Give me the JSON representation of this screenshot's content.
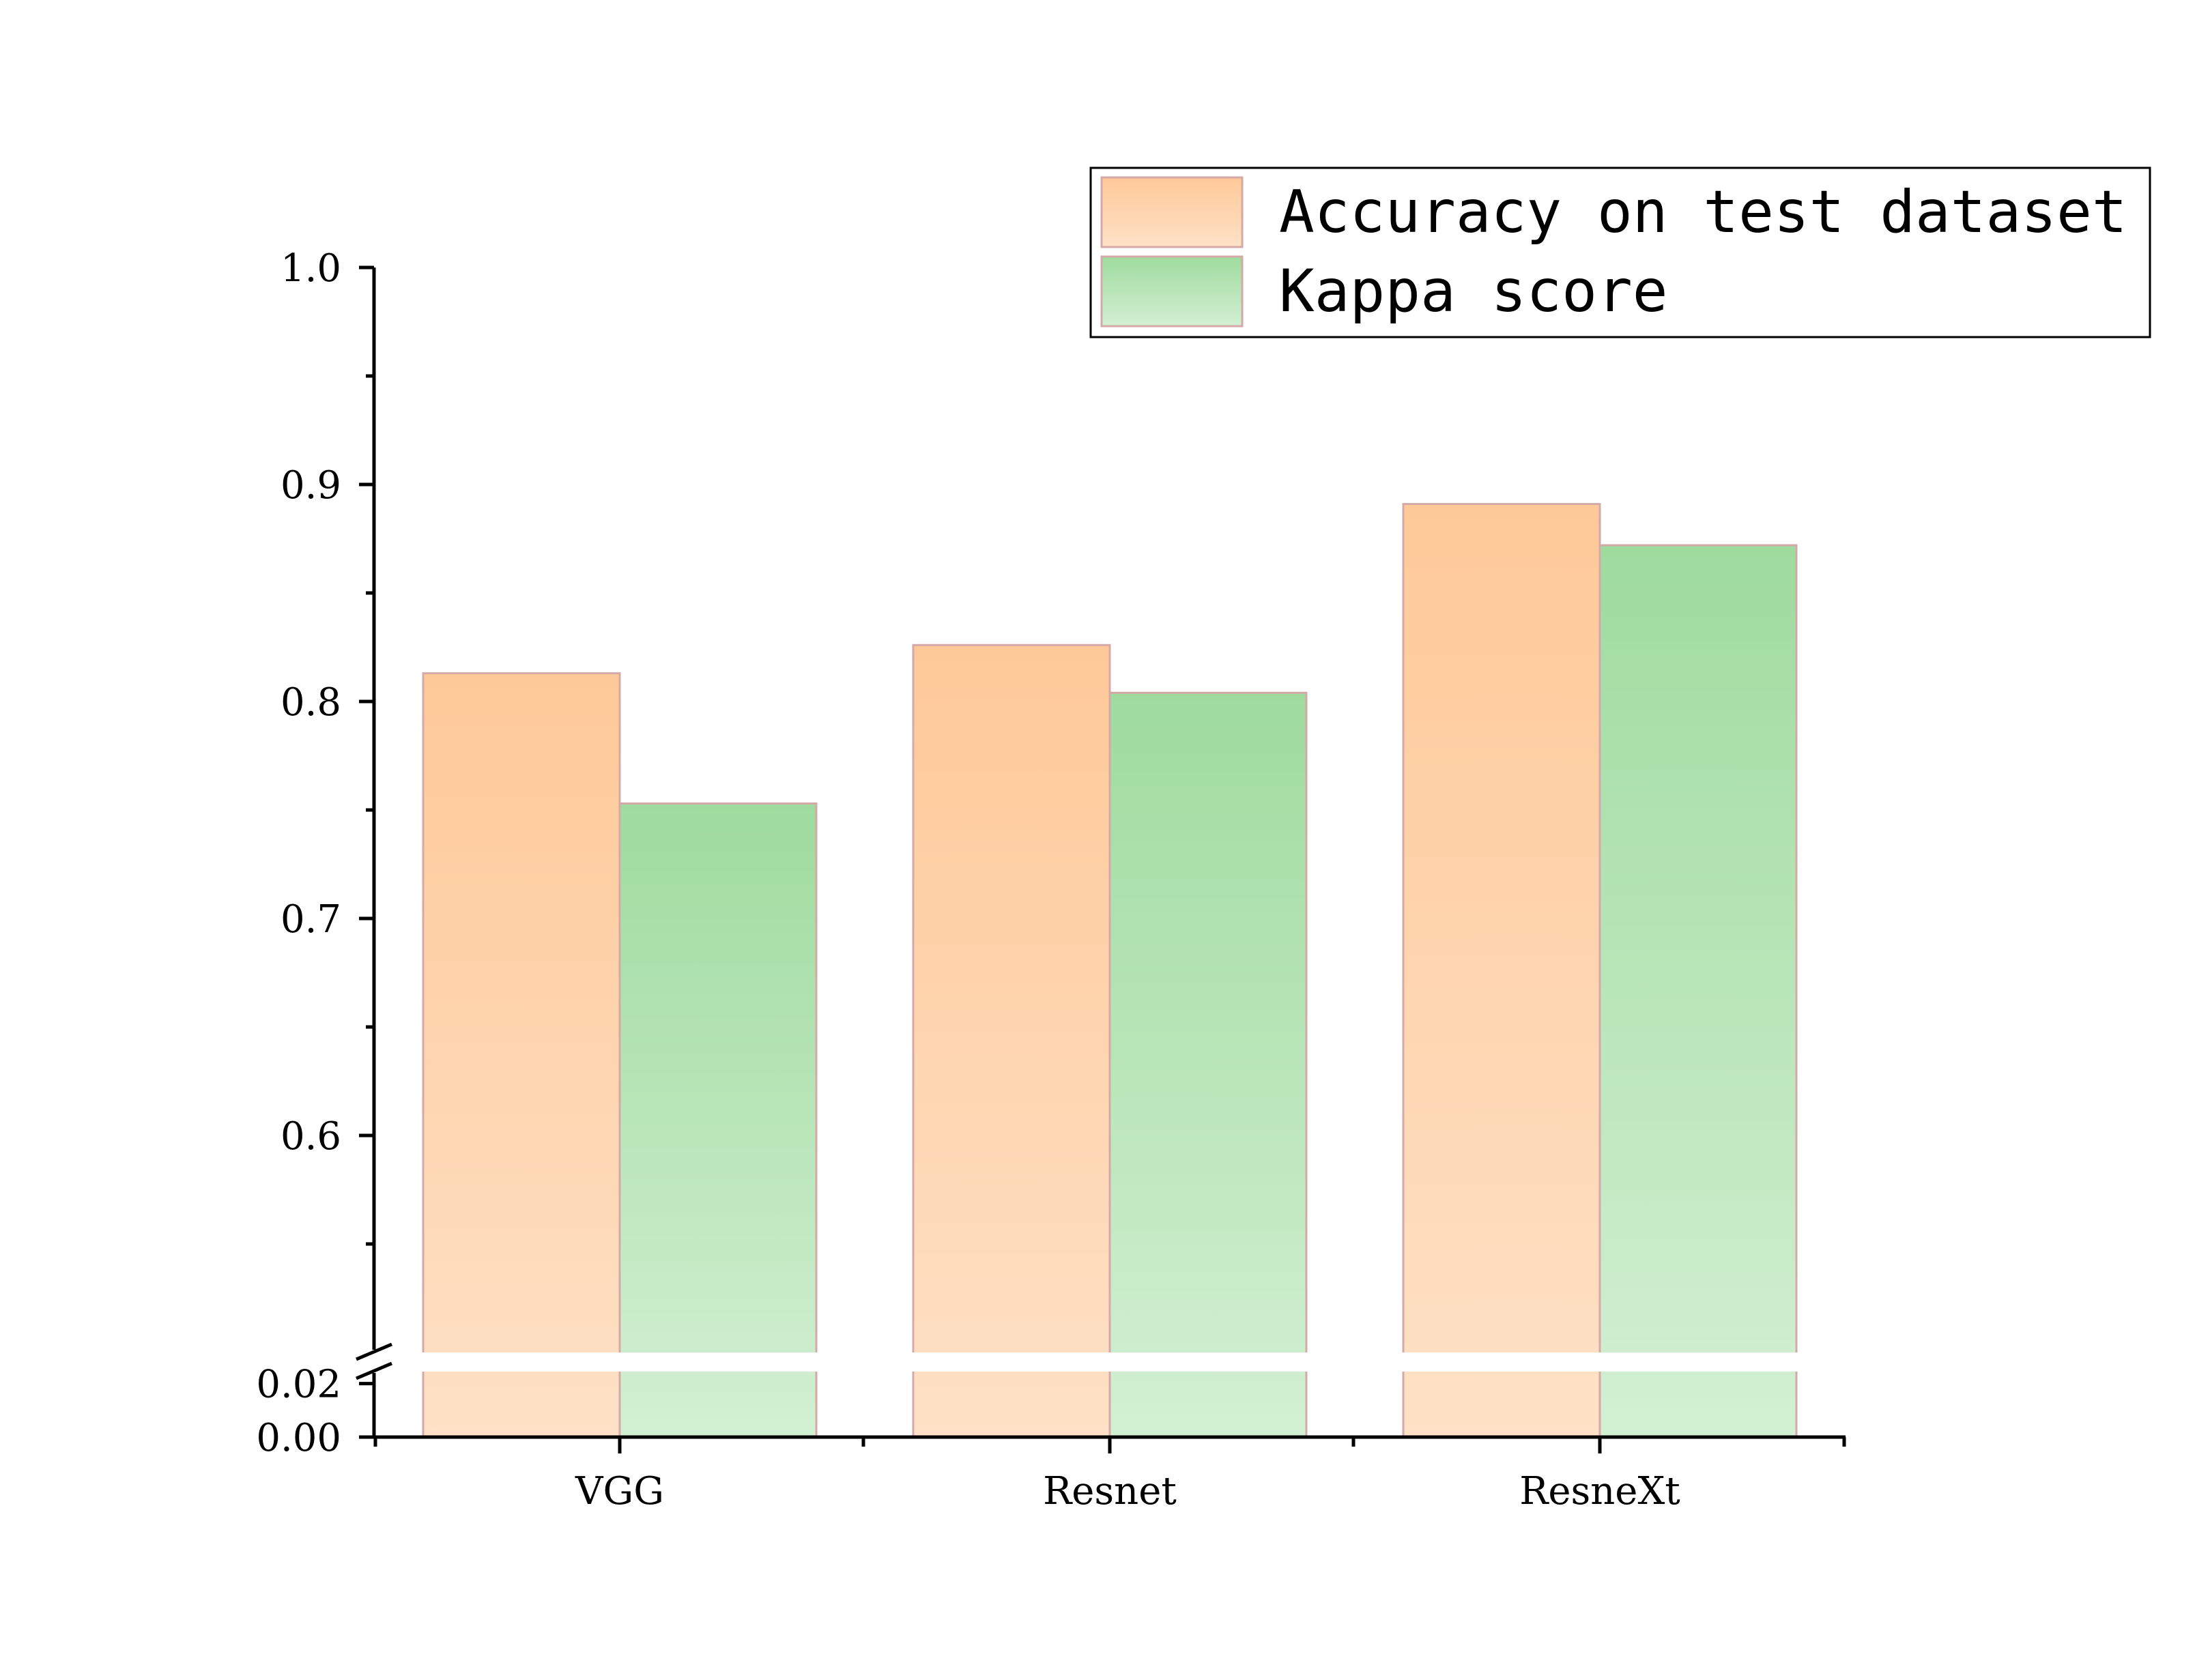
{
  "chart_data": {
    "type": "bar",
    "title": "",
    "xlabel": "",
    "ylabel": "",
    "categories": [
      "VGG",
      "Resnet",
      "ResneXt"
    ],
    "series": [
      {
        "name": "Accuracy on test dataset",
        "values": [
          0.813,
          0.826,
          0.891
        ],
        "color_top": "#fec998",
        "color_bottom": "#fee1c6"
      },
      {
        "name": "Kappa score",
        "values": [
          0.753,
          0.804,
          0.872
        ],
        "color_top": "#9fdb9e",
        "color_bottom": "#d3f0d3"
      }
    ],
    "y_axis": {
      "broken": true,
      "lower_segment": {
        "range": [
          0.0,
          0.025
        ],
        "tick_labels": [
          "0.00",
          "0.02"
        ]
      },
      "upper_segment": {
        "range": [
          0.5,
          1.0
        ],
        "tick_labels": [
          "0.6",
          "0.7",
          "0.8",
          "0.9",
          "1.0"
        ]
      }
    },
    "grid": false,
    "legend_position": "top-right"
  }
}
